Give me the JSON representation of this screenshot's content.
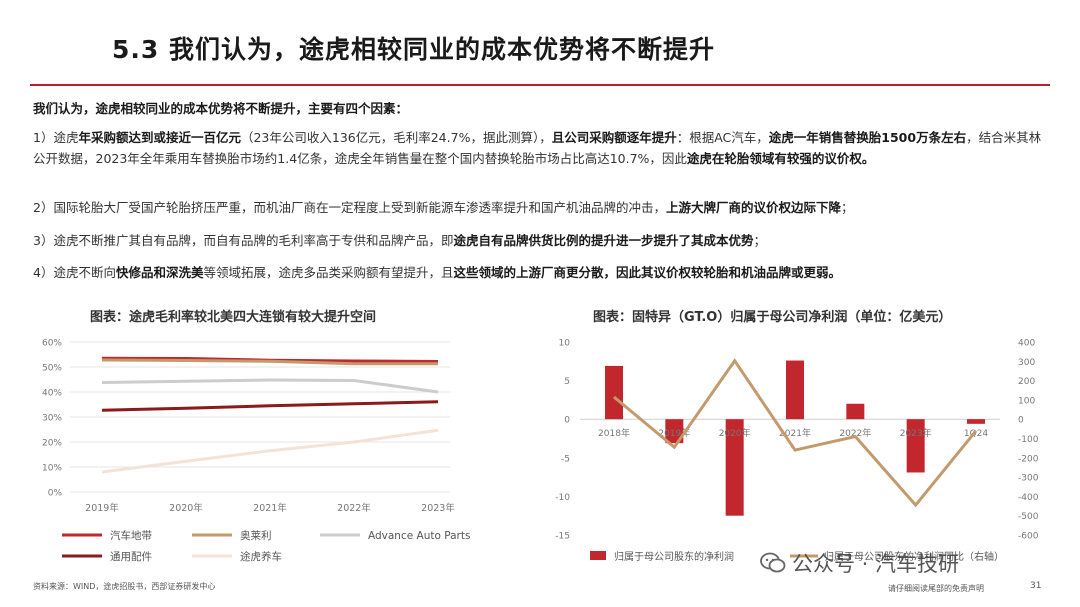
{
  "page": {
    "title": "5.3 我们认为，途虎相较同业的成本优势将不断提升",
    "intro": "我们认为，途虎相较同业的成本优势将不断提升，主要有四个因素：",
    "p1": {
      "a": "1）途虎",
      "b": "年采购额达到或接近一百亿元",
      "c": "（23年公司收入136亿元，毛利率24.7%，据此测算），",
      "d": "且公司采购额逐年提升",
      "e": "：根据AC汽车，",
      "f": "途虎一年销售替换胎1500万条左右",
      "g": "，结合米其林公开数据，2023年全年乘用车替换胎市场约1.4亿条，途虎全年销售量在整个国内替换轮胎市场占比高达10.7%，因此",
      "h": "途虎在轮胎领域有较强的议价权。"
    },
    "p2": {
      "a": "2）国际轮胎大厂受国产轮胎挤压严重，而机油厂商在一定程度上受到新能源车渗透率提升和国产机油品牌的冲击，",
      "b": "上游大牌厂商的议价权边际下降",
      "c": "；"
    },
    "p3": {
      "a": "3）途虎不断推广其自有品牌，而自有品牌的毛利率高于专供和品牌产品，即",
      "b": "途虎自有品牌供货比例的提升进一步提升了其成本优势",
      "c": "；"
    },
    "p4": {
      "a": "4）途虎不断向",
      "b": "快修品和深洗美",
      "c": "等领域拓展，途虎多品类采购额有望提升，且",
      "d": "这些领域的上游厂商更分散，因此其议价权较轮胎和机油品牌或更弱。"
    },
    "footer": {
      "source": "资料来源：WIND，途虎招股书，西部证券研发中心",
      "disclaimer": "请仔细阅读尾部的免责声明",
      "page_number": "31",
      "watermark": "公众号 · 汽车技研"
    }
  },
  "chart_data": [
    {
      "type": "line",
      "title": "图表：途虎毛利率较北美四大连锁有较大提升空间",
      "categories": [
        "2019年",
        "2020年",
        "2021年",
        "2022年",
        "2023年"
      ],
      "ylim": [
        0,
        60
      ],
      "yticks": [
        "0%",
        "10%",
        "20%",
        "30%",
        "40%",
        "50%",
        "60%"
      ],
      "series": [
        {
          "name": "汽车地带",
          "color": "#c1272d",
          "values": [
            53.5,
            53.4,
            52.7,
            52.4,
            52.2
          ]
        },
        {
          "name": "奥莱利",
          "color": "#c49a6c",
          "values": [
            52.8,
            52.6,
            52.3,
            51.3,
            51.3
          ]
        },
        {
          "name": "Advance Auto Parts",
          "color": "#cccccc",
          "values": [
            43.8,
            44.3,
            44.8,
            44.6,
            40.0
          ]
        },
        {
          "name": "通用配件",
          "color": "#8b1a1a",
          "values": [
            32.7,
            33.5,
            34.5,
            35.3,
            36.1
          ]
        },
        {
          "name": "途虎养车",
          "color": "#f3e3d6",
          "values": [
            8.0,
            12.3,
            16.5,
            20.0,
            24.7
          ]
        }
      ],
      "grid": true,
      "legend": "bottom"
    },
    {
      "type": "bar-line",
      "title": "图表：固特异（GT.O）归属于母公司净利润（单位：亿美元）",
      "categories": [
        "2018年",
        "2019年",
        "2020年",
        "2021年",
        "2022年",
        "2023年",
        "1Q24"
      ],
      "ylim_left": [
        -15,
        10
      ],
      "yticks_left": [
        "10",
        "5",
        "0",
        "-5",
        "-10",
        "-15"
      ],
      "ylim_right": [
        -600,
        400
      ],
      "yticks_right": [
        "400",
        "300",
        "200",
        "100",
        "0",
        "-100",
        "-200",
        "-300",
        "-400",
        "-500",
        "-600"
      ],
      "bars": {
        "name": "归属于母公司股东的净利润",
        "color": "#c1272d",
        "values": [
          6.9,
          -3.1,
          -12.5,
          7.6,
          2.0,
          -6.9,
          -0.6
        ]
      },
      "line": {
        "name": "归属于母公司股东的净利润同比（右轴）",
        "color": "#c49a6c",
        "values": [
          115,
          -145,
          303,
          -160,
          -90,
          -445,
          -60
        ]
      },
      "legend": "bottom"
    }
  ]
}
